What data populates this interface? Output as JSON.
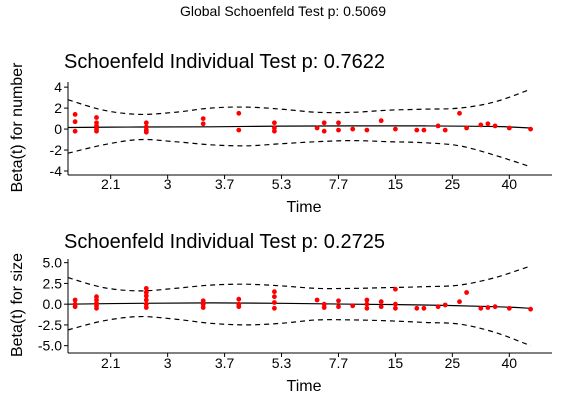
{
  "global_title": "Global Schoenfeld Test p: 0.5069",
  "chart_data": [
    {
      "type": "scatter",
      "title": "Schoenfeld Individual Test p: 0.7622",
      "xlabel": "Time",
      "ylabel": "Beta(t) for number",
      "x_axis": "ranked time, labeled with original time values",
      "x_ticks": [
        "2.1",
        "3",
        "3.7",
        "5.3",
        "7.7",
        "15",
        "25",
        "40"
      ],
      "x_tick_positions": [
        6,
        14,
        22,
        30,
        38,
        46,
        54,
        62
      ],
      "xlim": [
        0,
        68
      ],
      "y_ticks": [
        -4,
        -2,
        0,
        2,
        4
      ],
      "ylim": [
        -4,
        4.3
      ],
      "grid": false,
      "point_color": "#ff0000",
      "points": [
        [
          1,
          1.4
        ],
        [
          1,
          0.7
        ],
        [
          1,
          -0.2
        ],
        [
          4,
          1.1
        ],
        [
          4,
          0.6
        ],
        [
          4,
          0.3
        ],
        [
          4,
          0.0
        ],
        [
          4,
          -0.2
        ],
        [
          11,
          0.6
        ],
        [
          11,
          0.2
        ],
        [
          11,
          -0.1
        ],
        [
          11,
          -0.3
        ],
        [
          19,
          1.0
        ],
        [
          19,
          0.5
        ],
        [
          24,
          1.5
        ],
        [
          24,
          -0.1
        ],
        [
          29,
          0.6
        ],
        [
          29,
          0.1
        ],
        [
          29,
          -0.2
        ],
        [
          35,
          0.1
        ],
        [
          36,
          0.6
        ],
        [
          36,
          -0.2
        ],
        [
          38,
          0.6
        ],
        [
          38,
          -0.1
        ],
        [
          40,
          0.0
        ],
        [
          42,
          -0.1
        ],
        [
          44,
          0.8
        ],
        [
          46,
          0.0
        ],
        [
          49,
          -0.1
        ],
        [
          50,
          -0.1
        ],
        [
          52,
          0.3
        ],
        [
          53,
          -0.1
        ],
        [
          55,
          1.5
        ],
        [
          56,
          0.1
        ],
        [
          58,
          0.4
        ],
        [
          59,
          0.5
        ],
        [
          60,
          0.3
        ],
        [
          62,
          0.1
        ],
        [
          65,
          0.0
        ]
      ],
      "fit": [
        [
          0,
          0.15
        ],
        [
          10,
          0.2
        ],
        [
          20,
          0.22
        ],
        [
          30,
          0.28
        ],
        [
          40,
          0.3
        ],
        [
          50,
          0.3
        ],
        [
          60,
          0.25
        ],
        [
          65,
          0.1
        ]
      ],
      "ci_upper": [
        [
          0,
          2.8
        ],
        [
          5,
          1.8
        ],
        [
          10,
          1.4
        ],
        [
          15,
          1.6
        ],
        [
          20,
          2.0
        ],
        [
          25,
          2.1
        ],
        [
          30,
          1.9
        ],
        [
          35,
          1.6
        ],
        [
          40,
          1.6
        ],
        [
          45,
          1.8
        ],
        [
          50,
          1.9
        ],
        [
          55,
          2.0
        ],
        [
          60,
          2.6
        ],
        [
          65,
          3.8
        ]
      ],
      "ci_lower": [
        [
          0,
          -2.3
        ],
        [
          5,
          -1.5
        ],
        [
          10,
          -1.0
        ],
        [
          15,
          -1.2
        ],
        [
          20,
          -1.5
        ],
        [
          25,
          -1.6
        ],
        [
          30,
          -1.4
        ],
        [
          35,
          -1.2
        ],
        [
          40,
          -1.1
        ],
        [
          45,
          -1.2
        ],
        [
          50,
          -1.3
        ],
        [
          55,
          -1.6
        ],
        [
          60,
          -2.5
        ],
        [
          65,
          -3.6
        ]
      ]
    },
    {
      "type": "scatter",
      "title": "Schoenfeld Individual Test p: 0.2725",
      "xlabel": "Time",
      "ylabel": "Beta(t) for size",
      "x_axis": "ranked time, labeled with original time values",
      "x_ticks": [
        "2.1",
        "3",
        "3.7",
        "5.3",
        "7.7",
        "15",
        "25",
        "40"
      ],
      "x_tick_positions": [
        6,
        14,
        22,
        30,
        38,
        46,
        54,
        62
      ],
      "xlim": [
        0,
        68
      ],
      "y_ticks": [
        "5.0",
        "2.5",
        "0.0",
        "-2.5",
        "-5.0"
      ],
      "y_tick_values": [
        5.0,
        2.5,
        0.0,
        -2.5,
        -5.0
      ],
      "ylim": [
        -5.4,
        5.2
      ],
      "grid": false,
      "point_color": "#ff0000",
      "points": [
        [
          1,
          0.5
        ],
        [
          1,
          0.0
        ],
        [
          1,
          -0.3
        ],
        [
          4,
          0.9
        ],
        [
          4,
          0.5
        ],
        [
          4,
          0.1
        ],
        [
          4,
          -0.2
        ],
        [
          4,
          -0.5
        ],
        [
          11,
          1.9
        ],
        [
          11,
          1.4
        ],
        [
          11,
          1.0
        ],
        [
          11,
          0.5
        ],
        [
          11,
          0.0
        ],
        [
          11,
          -0.4
        ],
        [
          19,
          0.4
        ],
        [
          19,
          0.0
        ],
        [
          19,
          -0.4
        ],
        [
          24,
          0.6
        ],
        [
          24,
          0.0
        ],
        [
          24,
          -0.3
        ],
        [
          29,
          1.5
        ],
        [
          29,
          0.9
        ],
        [
          29,
          0.2
        ],
        [
          29,
          -0.5
        ],
        [
          35,
          0.5
        ],
        [
          36,
          0.0
        ],
        [
          36,
          -0.4
        ],
        [
          38,
          0.4
        ],
        [
          38,
          -0.3
        ],
        [
          40,
          -0.2
        ],
        [
          42,
          0.5
        ],
        [
          42,
          0.0
        ],
        [
          42,
          -0.5
        ],
        [
          44,
          0.3
        ],
        [
          44,
          -0.3
        ],
        [
          46,
          1.8
        ],
        [
          46,
          0.0
        ],
        [
          46,
          -0.5
        ],
        [
          49,
          -0.5
        ],
        [
          50,
          -0.5
        ],
        [
          52,
          -0.3
        ],
        [
          53,
          -0.1
        ],
        [
          55,
          0.3
        ],
        [
          56,
          1.4
        ],
        [
          58,
          -0.5
        ],
        [
          59,
          -0.4
        ],
        [
          60,
          -0.3
        ],
        [
          62,
          -0.5
        ],
        [
          65,
          -0.6
        ]
      ],
      "fit": [
        [
          0,
          0.0
        ],
        [
          10,
          0.1
        ],
        [
          20,
          0.15
        ],
        [
          30,
          0.1
        ],
        [
          40,
          0.0
        ],
        [
          50,
          -0.1
        ],
        [
          60,
          -0.3
        ],
        [
          65,
          -0.5
        ]
      ],
      "ci_upper": [
        [
          0,
          3.2
        ],
        [
          5,
          2.0
        ],
        [
          10,
          1.6
        ],
        [
          15,
          1.9
        ],
        [
          20,
          2.3
        ],
        [
          25,
          2.4
        ],
        [
          30,
          2.2
        ],
        [
          35,
          1.9
        ],
        [
          40,
          1.9
        ],
        [
          45,
          2.0
        ],
        [
          50,
          2.1
        ],
        [
          55,
          2.3
        ],
        [
          60,
          3.2
        ],
        [
          65,
          4.6
        ]
      ],
      "ci_lower": [
        [
          0,
          -3.1
        ],
        [
          5,
          -2.0
        ],
        [
          10,
          -1.5
        ],
        [
          15,
          -1.8
        ],
        [
          20,
          -2.3
        ],
        [
          25,
          -2.5
        ],
        [
          30,
          -2.3
        ],
        [
          35,
          -1.9
        ],
        [
          40,
          -1.9
        ],
        [
          45,
          -2.0
        ],
        [
          50,
          -2.2
        ],
        [
          55,
          -2.4
        ],
        [
          60,
          -3.4
        ],
        [
          65,
          -5.0
        ]
      ]
    }
  ]
}
